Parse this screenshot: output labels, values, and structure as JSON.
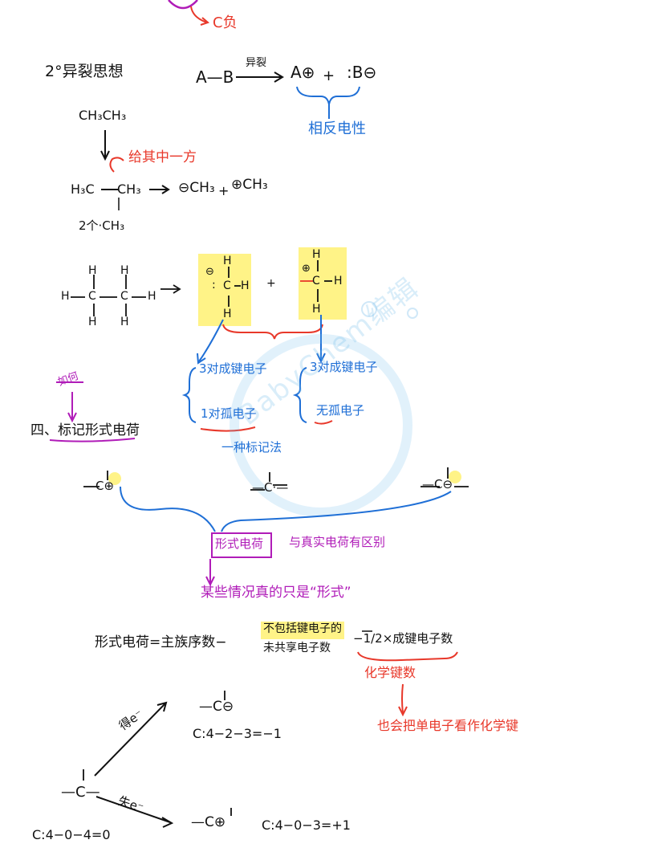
{
  "colors": {
    "black": "#111111",
    "red": "#e8382a",
    "blue": "#1f6fd6",
    "purple": "#b01cb8",
    "highlight": "#fff27a"
  },
  "top": {
    "c_neg": "C负"
  },
  "section2": {
    "title": "2°异裂思想",
    "reaction_left": "A—B",
    "reaction_arrow_label": "异裂",
    "product_a": "A⊕",
    "plus": "+",
    "product_b": ":B⊖",
    "brace_label": "相反电性",
    "ethane": "CH₃CH₃",
    "ethane_left": "H₃C",
    "ethane_right": "CH₃",
    "give_label": "给其中一方",
    "bottom_ch3": "2个·CH₃",
    "prod1": "⊖CH₃",
    "prod2": "⊕CH₃",
    "plus2": "+"
  },
  "structure": {
    "H": "H",
    "C": "C",
    "arrow": "→",
    "left_notes": [
      "3对成键电子",
      "1对孤电子"
    ],
    "right_notes": [
      "3对成键电子",
      "无孤电子"
    ],
    "brace_note": "一种标记法"
  },
  "section4": {
    "title": "四、标记形式电荷",
    "note": "如何",
    "carbocation": "—C⊕",
    "radical": "—C·—",
    "carbanion": "—C⊖",
    "formal_charge": "形式电荷",
    "differ_note": "与真实电荷有区别",
    "some_cases": "某些情况真的只是“形式”"
  },
  "formula": {
    "lhs": "形式电荷=主族序数−",
    "term1_line1": "不包括键电子的",
    "term1_line2": "未共享电子数",
    "term2": "−1/2×成键电子数",
    "bond_count": "化学键数",
    "note": "也会把单电子看作化学键"
  },
  "examples": {
    "gain": "得e⁻",
    "lose": "失e⁻",
    "center": "—C—",
    "center_eq": "C:4−0−4=0",
    "top_species": "—C⊖",
    "top_eq": "C:4−2−3=−1",
    "bottom_species": "—C⊕",
    "bottom_eq": "C:4−0−3=+1"
  },
  "watermark": "BabyChem编辑"
}
